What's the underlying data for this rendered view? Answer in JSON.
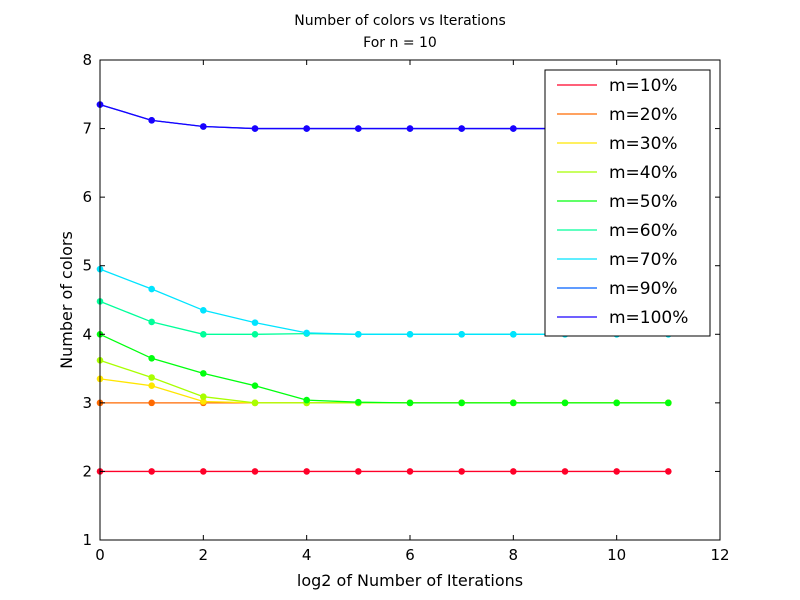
{
  "chart_data": {
    "type": "line",
    "title": "Number of colors vs Iterations",
    "subtitle": "For n = 10",
    "xlabel": "log2 of Number of Iterations",
    "ylabel": "Number of colors",
    "xlim": [
      0,
      12
    ],
    "ylim": [
      1,
      8
    ],
    "xticks": [
      0,
      2,
      4,
      6,
      8,
      10,
      12
    ],
    "yticks": [
      1,
      2,
      3,
      4,
      5,
      6,
      7,
      8
    ],
    "grid": false,
    "legend_position": "top-right",
    "x": [
      0,
      1,
      2,
      3,
      4,
      5,
      6,
      7,
      8,
      9,
      10,
      11
    ],
    "series": [
      {
        "name": "m=10%",
        "color": "#ff0029",
        "values": [
          2,
          2,
          2,
          2,
          2,
          2,
          2,
          2,
          2,
          2,
          2,
          2
        ]
      },
      {
        "name": "m=20%",
        "color": "#ff6a00",
        "values": [
          3,
          3,
          3,
          3,
          3,
          3,
          3,
          3,
          3,
          3,
          3,
          3
        ]
      },
      {
        "name": "m=30%",
        "color": "#ffe600",
        "values": [
          3.35,
          3.25,
          3.02,
          3,
          3,
          3,
          3,
          3,
          3,
          3,
          3,
          3
        ]
      },
      {
        "name": "m=40%",
        "color": "#a8ff00",
        "values": [
          3.62,
          3.37,
          3.09,
          3,
          3,
          3,
          3,
          3,
          3,
          3,
          3,
          3
        ]
      },
      {
        "name": "m=50%",
        "color": "#00ff0e",
        "values": [
          4.0,
          3.65,
          3.43,
          3.25,
          3.04,
          3.01,
          3,
          3,
          3,
          3,
          3,
          3
        ]
      },
      {
        "name": "m=60%",
        "color": "#00ff9a",
        "values": [
          4.48,
          4.18,
          4.0,
          4.0,
          4.01,
          4.0,
          4.0,
          4.0,
          4.0,
          4.0,
          4.0,
          4.0
        ]
      },
      {
        "name": "m=70%",
        "color": "#00e4ff",
        "values": [
          4.95,
          4.66,
          4.35,
          4.17,
          4.02,
          4.0,
          4.0,
          4.0,
          4.0,
          4.0,
          4.0,
          4.0
        ]
      },
      {
        "name": "m=90%",
        "color": "#0062ff",
        "values": [
          7.35,
          7.12,
          7.03,
          7.0,
          7.0,
          7.0,
          7.0,
          7.0,
          7.0,
          7.0,
          7.0,
          7.0
        ]
      },
      {
        "name": "m=100%",
        "color": "#1a00ff",
        "values": [
          7.35,
          7.12,
          7.03,
          7.0,
          7.0,
          7.0,
          7.0,
          7.0,
          7.0,
          7.0,
          7.0,
          7.0
        ]
      }
    ]
  }
}
